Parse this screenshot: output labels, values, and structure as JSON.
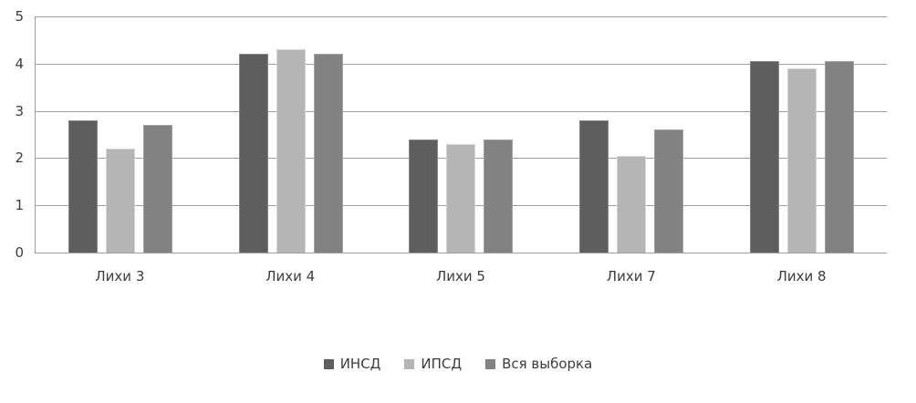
{
  "chart_data": {
    "type": "bar",
    "title": "",
    "xlabel": "",
    "ylabel": "",
    "categories": [
      "Лихи 3",
      "Лихи 4",
      "Лихи 5",
      "Лихи 7",
      "Лихи 8"
    ],
    "series": [
      {
        "name": "ИНСД",
        "color": "#5e5e5e",
        "border_color": "#878787",
        "values": [
          2.8,
          4.2,
          2.4,
          2.8,
          4.05
        ]
      },
      {
        "name": "ИПСД",
        "color": "#b5b5b5",
        "border_color": "#d4d4d4",
        "values": [
          2.2,
          4.3,
          2.3,
          2.05,
          3.9
        ]
      },
      {
        "name": "Вся выборка",
        "color": "#828282",
        "border_color": "#a2a2a2",
        "values": [
          2.7,
          4.2,
          2.4,
          2.6,
          4.05
        ]
      }
    ],
    "ylim": [
      0,
      5
    ],
    "yticks": [
      0,
      1,
      2,
      3,
      4,
      5
    ],
    "grid": true,
    "legend_position": "bottom",
    "gridline_color": "#9e9e9e",
    "axis_text_color": "#3d3d3d",
    "background": "#ffffff"
  }
}
